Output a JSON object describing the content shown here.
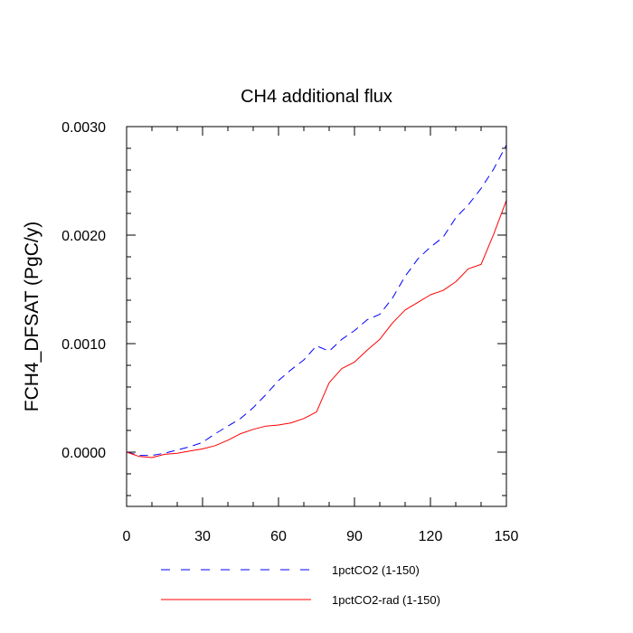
{
  "chart_data": {
    "type": "line",
    "title": "CH4 additional flux",
    "xlabel": "",
    "ylabel": "FCH4_DFSAT  (PgC/y)",
    "xlim": [
      0,
      150
    ],
    "ylim": [
      -0.0005,
      0.003
    ],
    "x_ticks": [
      0,
      30,
      60,
      90,
      120,
      150
    ],
    "x_tick_labels": [
      "0",
      "30",
      "60",
      "90",
      "120",
      "150"
    ],
    "y_ticks": [
      0.0,
      0.001,
      0.002,
      0.003
    ],
    "y_tick_labels": [
      "0.0000",
      "0.0010",
      "0.0020",
      "0.0030"
    ],
    "grid": false,
    "legend_position": "bottom",
    "series": [
      {
        "name": "1pctCO2 (1-150)",
        "color": "#0000ff",
        "dash": "dashed",
        "x": [
          0,
          5,
          10,
          15,
          20,
          25,
          30,
          35,
          40,
          45,
          50,
          55,
          60,
          65,
          70,
          75,
          80,
          85,
          90,
          95,
          100,
          105,
          110,
          115,
          120,
          125,
          130,
          135,
          140,
          145,
          150
        ],
        "y": [
          0.0,
          -3e-05,
          -3e-05,
          -1e-05,
          2e-05,
          5e-05,
          9e-05,
          0.00017,
          0.00024,
          0.00031,
          0.00041,
          0.00053,
          0.00066,
          0.00076,
          0.00085,
          0.00098,
          0.00093,
          0.00104,
          0.00112,
          0.00122,
          0.00127,
          0.00142,
          0.00162,
          0.00178,
          0.00189,
          0.00198,
          0.00216,
          0.00228,
          0.00243,
          0.00261,
          0.00283
        ]
      },
      {
        "name": "1pctCO2-rad (1-150)",
        "color": "#ff0000",
        "dash": "solid",
        "x": [
          0,
          5,
          10,
          15,
          20,
          25,
          30,
          35,
          40,
          45,
          50,
          55,
          60,
          65,
          70,
          75,
          80,
          85,
          90,
          95,
          100,
          105,
          110,
          115,
          120,
          125,
          130,
          135,
          140,
          145,
          150
        ],
        "y": [
          0.0,
          -4e-05,
          -5e-05,
          -2e-05,
          -1e-05,
          1e-05,
          3e-05,
          6e-05,
          0.00011,
          0.00017,
          0.00021,
          0.00024,
          0.00025,
          0.00027,
          0.00031,
          0.00037,
          0.00064,
          0.00077,
          0.00083,
          0.00094,
          0.00104,
          0.00119,
          0.00131,
          0.00138,
          0.00145,
          0.00149,
          0.00157,
          0.00169,
          0.00173,
          0.00201,
          0.00232
        ]
      }
    ]
  }
}
